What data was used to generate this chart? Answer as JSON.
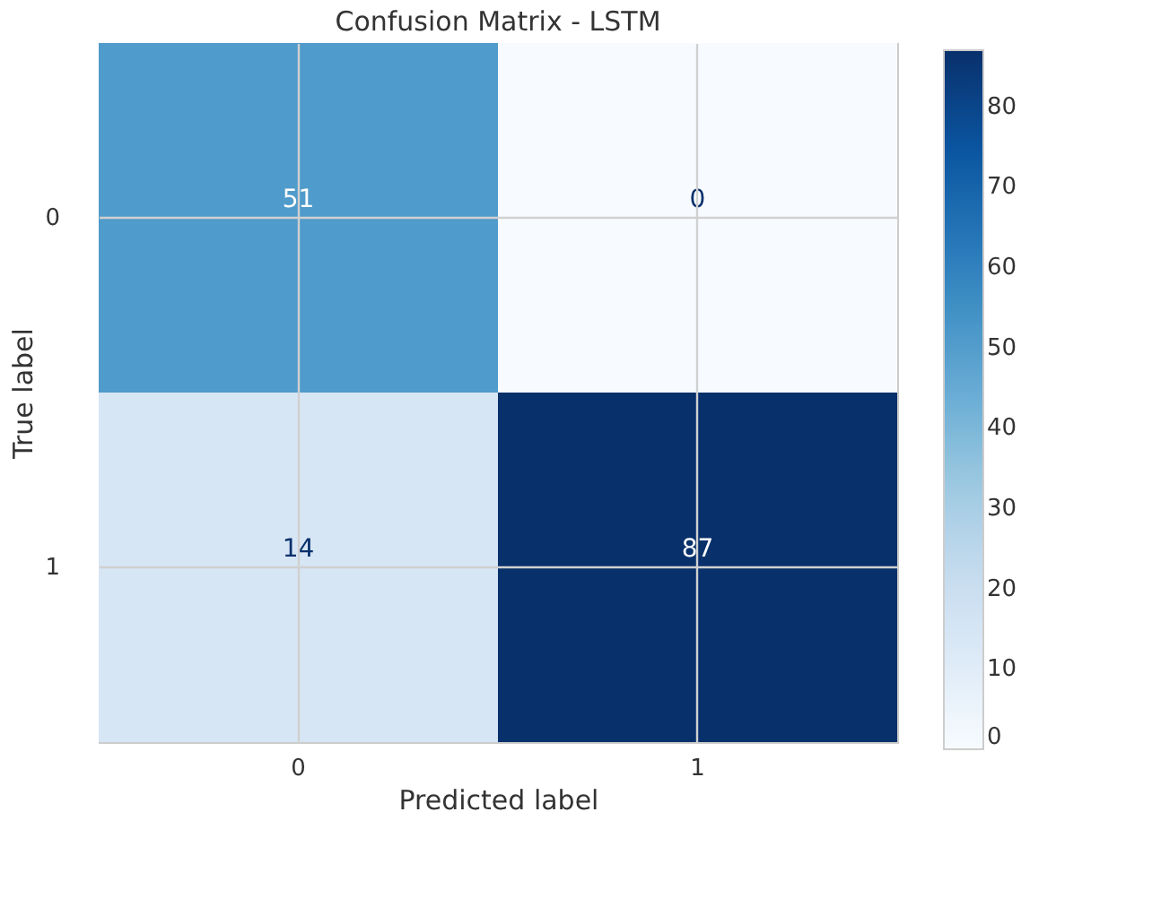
{
  "chart_data": {
    "type": "heatmap",
    "title": "Confusion Matrix - LSTM",
    "xlabel": "Predicted label",
    "ylabel": "True label",
    "categories": [
      "0",
      "1"
    ],
    "y_categories": [
      "0",
      "1"
    ],
    "cells": [
      [
        51,
        0
      ],
      [
        14,
        87
      ]
    ],
    "clim": [
      0,
      87
    ],
    "cticks": [
      0,
      10,
      20,
      30,
      40,
      50,
      60,
      70,
      80
    ],
    "data_labels": true,
    "grid": true
  }
}
